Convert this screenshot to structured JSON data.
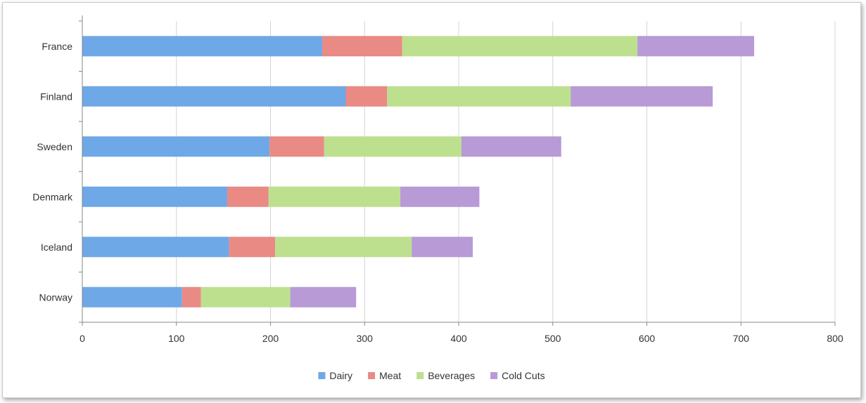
{
  "chart_data": {
    "type": "bar",
    "orientation": "horizontal",
    "stacked": true,
    "categories": [
      "France",
      "Finland",
      "Sweden",
      "Denmark",
      "Iceland",
      "Norway"
    ],
    "series": [
      {
        "name": "Dairy",
        "color": "#6fa8e6",
        "values": [
          255,
          280,
          199,
          154,
          156,
          106
        ]
      },
      {
        "name": "Meat",
        "color": "#e98a85",
        "values": [
          85,
          44,
          58,
          44,
          49,
          20
        ]
      },
      {
        "name": "Beverages",
        "color": "#bde08f",
        "values": [
          250,
          195,
          146,
          140,
          145,
          95
        ]
      },
      {
        "name": "Cold Cuts",
        "color": "#b79ad6",
        "values": [
          124,
          151,
          106,
          84,
          65,
          70
        ]
      }
    ],
    "xlim": [
      0,
      800
    ],
    "xticks": [
      0,
      100,
      200,
      300,
      400,
      500,
      600,
      700,
      800
    ],
    "grid": "vertical",
    "legend_position": "bottom"
  }
}
